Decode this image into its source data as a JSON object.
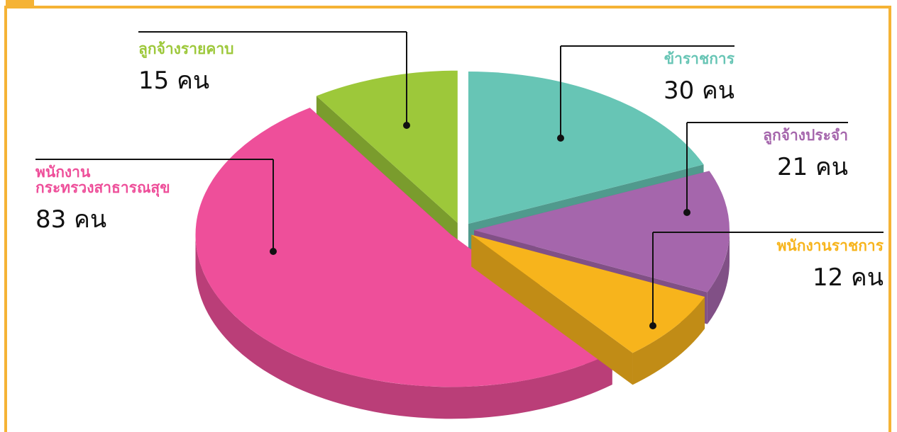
{
  "chart_data": {
    "type": "pie",
    "categories": [
      "ข้าราชการ",
      "ลูกจ้างประจำ",
      "พนักงานราชการ",
      "พนักงาน\nกระทรวงสาธารณสุข",
      "ลูกจ้างรายคาบ"
    ],
    "values": [
      30,
      21,
      12,
      83,
      15
    ],
    "value_labels": [
      "30 คน",
      "21 คน",
      "12 คน",
      "83 คน",
      "15 คน"
    ],
    "colors": [
      "#67c5b5",
      "#a566ac",
      "#f7b41c",
      "#ee4f9a",
      "#9dc83a"
    ]
  }
}
